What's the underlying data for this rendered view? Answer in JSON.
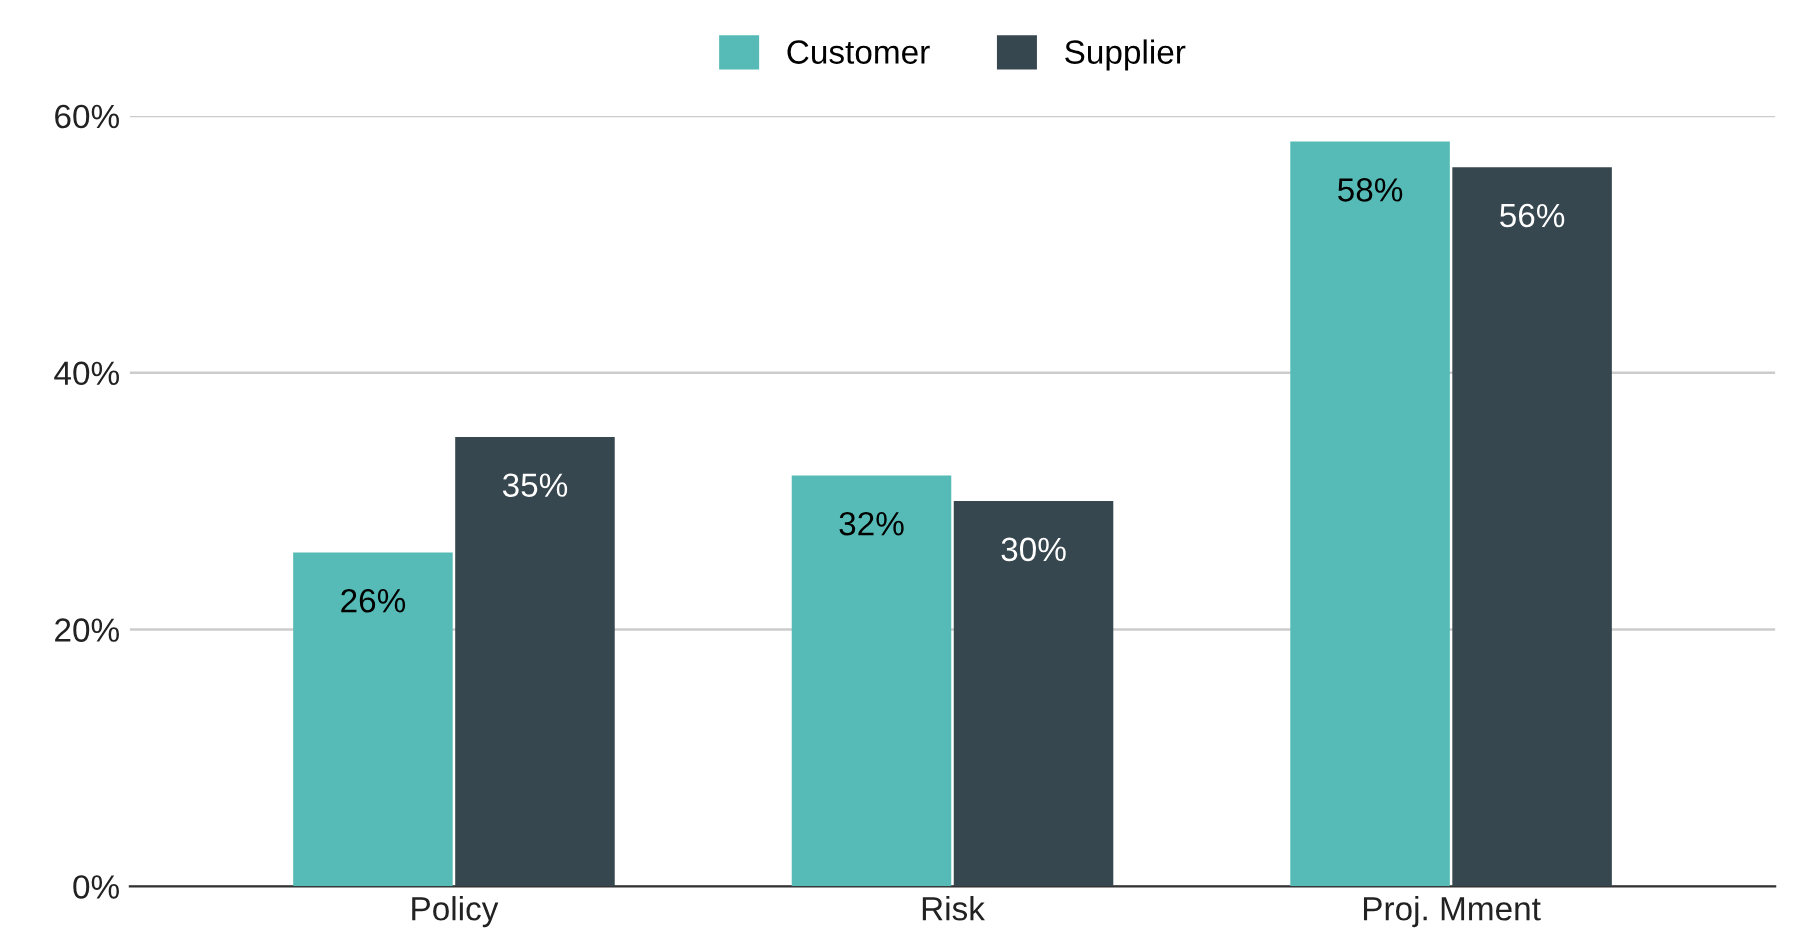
{
  "chart_data": {
    "type": "bar",
    "categories": [
      "Policy",
      "Risk",
      "Proj. Mment"
    ],
    "series": [
      {
        "name": "Customer",
        "color": "#56bbb6",
        "values": [
          26,
          32,
          58
        ],
        "value_labels": [
          "26%",
          "32%",
          "58%"
        ]
      },
      {
        "name": "Supplier",
        "color": "#37474f",
        "values": [
          35,
          30,
          56
        ],
        "value_labels": [
          "35%",
          "30%",
          "56%"
        ]
      }
    ],
    "ylim": [
      0,
      60
    ],
    "yticks": [
      {
        "value": 0,
        "label": "0%"
      },
      {
        "value": 20,
        "label": "20%"
      },
      {
        "value": 40,
        "label": "40%"
      },
      {
        "value": 60,
        "label": "60%"
      }
    ],
    "grid": "y",
    "legend": "top"
  }
}
